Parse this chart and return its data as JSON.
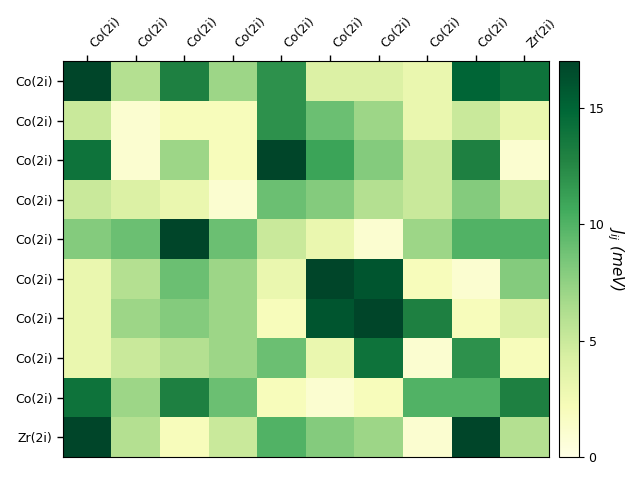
{
  "labels": [
    "Co(2i)",
    "Co(2i)",
    "Co(2i)",
    "Co(2i)",
    "Co(2i)",
    "Co(2i)",
    "Co(2i)",
    "Co(2i)",
    "Co(2i)",
    "Zr(2i)"
  ],
  "colorbar_label": "$J_{ij}$ (meV)",
  "vmin": 0,
  "vmax": 17,
  "cmap": "YlGn",
  "matrix": [
    [
      17,
      6,
      13,
      7,
      12,
      4,
      4,
      3,
      15,
      14
    ],
    [
      5,
      1,
      2,
      2,
      12,
      9,
      7,
      3,
      5,
      3
    ],
    [
      14,
      1,
      7,
      2,
      17,
      11,
      8,
      5,
      13,
      1
    ],
    [
      5,
      4,
      3,
      1,
      9,
      8,
      6,
      5,
      8,
      5
    ],
    [
      8,
      9,
      17,
      9,
      5,
      3,
      1,
      7,
      10,
      10
    ],
    [
      3,
      6,
      9,
      7,
      3,
      17,
      16,
      2,
      1,
      8
    ],
    [
      3,
      7,
      8,
      7,
      2,
      16,
      17,
      13,
      2,
      4
    ],
    [
      3,
      5,
      6,
      7,
      9,
      3,
      14,
      1,
      12,
      2
    ],
    [
      14,
      7,
      13,
      9,
      2,
      1,
      2,
      10,
      10,
      13
    ],
    [
      17,
      6,
      2,
      5,
      10,
      8,
      7,
      1,
      17,
      6
    ]
  ],
  "figsize": [
    6.4,
    4.8
  ],
  "dpi": 100
}
